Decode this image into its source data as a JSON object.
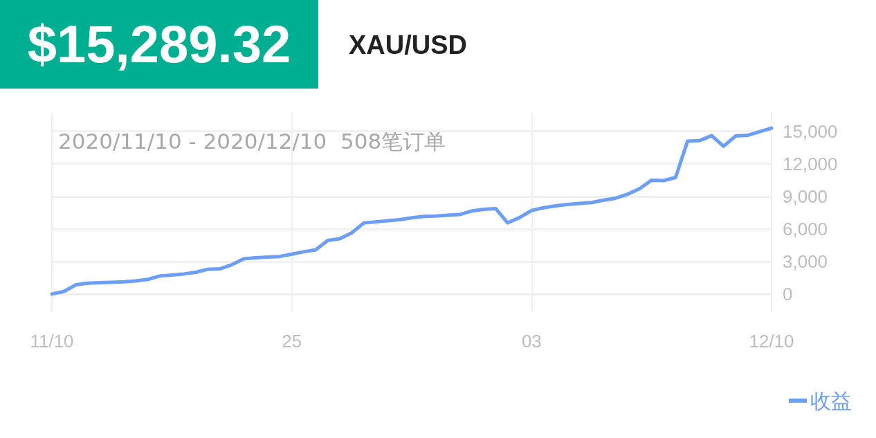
{
  "chart_data": {
    "type": "line",
    "title": "$15,289.32",
    "subtitle": "XAU/USD",
    "annotations": [
      "2020/11/10 - 2020/12/10  508笔订单"
    ],
    "categories": [
      "11/10",
      null,
      null,
      null,
      null,
      null,
      null,
      null,
      null,
      null,
      null,
      null,
      null,
      null,
      null,
      null,
      null,
      null,
      null,
      null,
      "25",
      null,
      null,
      null,
      null,
      null,
      null,
      null,
      null,
      null,
      null,
      null,
      null,
      null,
      null,
      null,
      null,
      null,
      null,
      null,
      "03",
      null,
      null,
      null,
      null,
      null,
      null,
      null,
      null,
      null,
      null,
      null,
      null,
      null,
      null,
      null,
      null,
      null,
      null,
      null,
      "12/10"
    ],
    "series": [
      {
        "name": "收益",
        "color": "#6c9ef5",
        "values": [
          0,
          230,
          850,
          1000,
          1040,
          1080,
          1120,
          1200,
          1350,
          1660,
          1750,
          1850,
          2000,
          2280,
          2320,
          2700,
          3250,
          3340,
          3400,
          3460,
          3680,
          3890,
          4080,
          4930,
          5100,
          5640,
          6540,
          6650,
          6750,
          6850,
          7020,
          7150,
          7190,
          7260,
          7320,
          7650,
          7800,
          7870,
          6560,
          7050,
          7700,
          7950,
          8120,
          8250,
          8340,
          8430,
          8650,
          8830,
          9200,
          9700,
          10490,
          10450,
          10740,
          14090,
          14130,
          14600,
          13620,
          14560,
          14620,
          14950,
          15290
        ]
      }
    ],
    "ylim": [
      -1600,
      16700
    ],
    "yticks": [
      {
        "value": 0,
        "label": "0"
      },
      {
        "value": 3000,
        "label": "3,000"
      },
      {
        "value": 6000,
        "label": "6,000"
      },
      {
        "value": 9000,
        "label": "9,000"
      },
      {
        "value": 12000,
        "label": "12,000"
      },
      {
        "value": 15000,
        "label": "15,000"
      }
    ],
    "grid": true,
    "legend": "bottom right",
    "marker": "none",
    "line_style": "solid"
  }
}
